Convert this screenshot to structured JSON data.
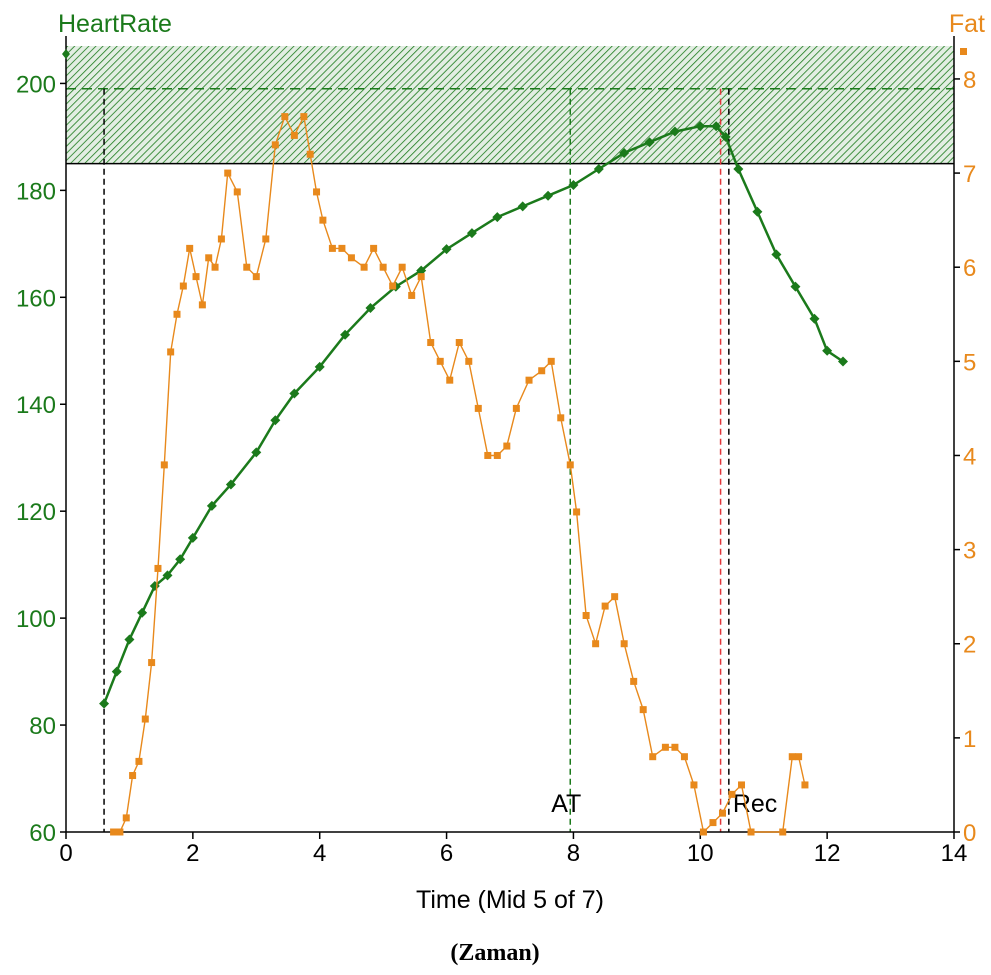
{
  "chart_data": {
    "type": "line",
    "xlabel": "Time (Mid 5 of 7)",
    "caption": "(Zaman)",
    "xlim": [
      0,
      14
    ],
    "x_ticks": [
      "0",
      "2",
      "4",
      "6",
      "8",
      "10",
      "12",
      "14"
    ],
    "left_axis": {
      "label": "HeartRate",
      "ylim": [
        60,
        207
      ],
      "ticks": [
        "60",
        "80",
        "100",
        "120",
        "140",
        "160",
        "180",
        "200"
      ],
      "color": "#1b7a1b"
    },
    "right_axis": {
      "label": "Fat",
      "ylim": [
        0,
        8.35
      ],
      "ticks": [
        "0",
        "1",
        "2",
        "3",
        "4",
        "5",
        "6",
        "7",
        "8"
      ],
      "color": "#e8891c"
    },
    "zone": {
      "from": 185,
      "to": 207,
      "color": "#1b7a1b",
      "hatch": true
    },
    "reference_lines": [
      {
        "x": 0.6,
        "color": "#000000",
        "label": ""
      },
      {
        "x": 7.95,
        "color": "#1b7a1b",
        "label": "AT"
      },
      {
        "x": 10.32,
        "color": "#e0353a",
        "label": ""
      },
      {
        "x": 10.45,
        "color": "#000000",
        "label": "Rec"
      }
    ],
    "hline": {
      "y": 199,
      "color": "#1b7a1b"
    },
    "series": [
      {
        "name": "HeartRate",
        "axis": "left",
        "color": "#1b7a1b",
        "marker": "diamond",
        "x": [
          0.6,
          0.8,
          1.0,
          1.2,
          1.4,
          1.6,
          1.8,
          2.0,
          2.3,
          2.6,
          3.0,
          3.3,
          3.6,
          4.0,
          4.4,
          4.8,
          5.2,
          5.6,
          6.0,
          6.4,
          6.8,
          7.2,
          7.6,
          8.0,
          8.4,
          8.8,
          9.2,
          9.6,
          10.0,
          10.25,
          10.4,
          10.6,
          10.9,
          11.2,
          11.5,
          11.8,
          12.0,
          12.25
        ],
        "y": [
          84,
          90,
          96,
          101,
          106,
          108,
          111,
          115,
          121,
          125,
          131,
          137,
          142,
          147,
          153,
          158,
          162,
          165,
          169,
          172,
          175,
          177,
          179,
          181,
          184,
          187,
          189,
          191,
          192,
          192,
          190,
          184,
          176,
          168,
          162,
          156,
          150,
          148
        ]
      },
      {
        "name": "Fat",
        "axis": "right",
        "color": "#e8891c",
        "marker": "square",
        "x": [
          0.75,
          0.85,
          0.95,
          1.05,
          1.15,
          1.25,
          1.35,
          1.45,
          1.55,
          1.65,
          1.75,
          1.85,
          1.95,
          2.05,
          2.15,
          2.25,
          2.35,
          2.45,
          2.55,
          2.7,
          2.85,
          3.0,
          3.15,
          3.3,
          3.45,
          3.6,
          3.75,
          3.85,
          3.95,
          4.05,
          4.2,
          4.35,
          4.5,
          4.7,
          4.85,
          5.0,
          5.15,
          5.3,
          5.45,
          5.6,
          5.75,
          5.9,
          6.05,
          6.2,
          6.35,
          6.5,
          6.65,
          6.8,
          6.95,
          7.1,
          7.3,
          7.5,
          7.65,
          7.8,
          7.95,
          8.05,
          8.2,
          8.35,
          8.5,
          8.65,
          8.8,
          8.95,
          9.1,
          9.25,
          9.45,
          9.6,
          9.75,
          9.9,
          10.05,
          10.2,
          10.35,
          10.5,
          10.65,
          10.8,
          11.3,
          11.45,
          11.55,
          11.65
        ],
        "y": [
          0.0,
          0.0,
          0.15,
          0.6,
          0.75,
          1.2,
          1.8,
          2.8,
          3.9,
          5.1,
          5.5,
          5.8,
          6.2,
          5.9,
          5.6,
          6.1,
          6.0,
          6.3,
          7.0,
          6.8,
          6.0,
          5.9,
          6.3,
          7.3,
          7.6,
          7.4,
          7.6,
          7.2,
          6.8,
          6.5,
          6.2,
          6.2,
          6.1,
          6.0,
          6.2,
          6.0,
          5.8,
          6.0,
          5.7,
          5.9,
          5.2,
          5.0,
          4.8,
          5.2,
          5.0,
          4.5,
          4.0,
          4.0,
          4.1,
          4.5,
          4.8,
          4.9,
          5.0,
          4.4,
          3.9,
          3.4,
          2.3,
          2.0,
          2.4,
          2.5,
          2.0,
          1.6,
          1.3,
          0.8,
          0.9,
          0.9,
          0.8,
          0.5,
          0.0,
          0.1,
          0.2,
          0.4,
          0.5,
          0.0,
          0.0,
          0.8,
          0.8,
          0.5
        ]
      }
    ]
  }
}
